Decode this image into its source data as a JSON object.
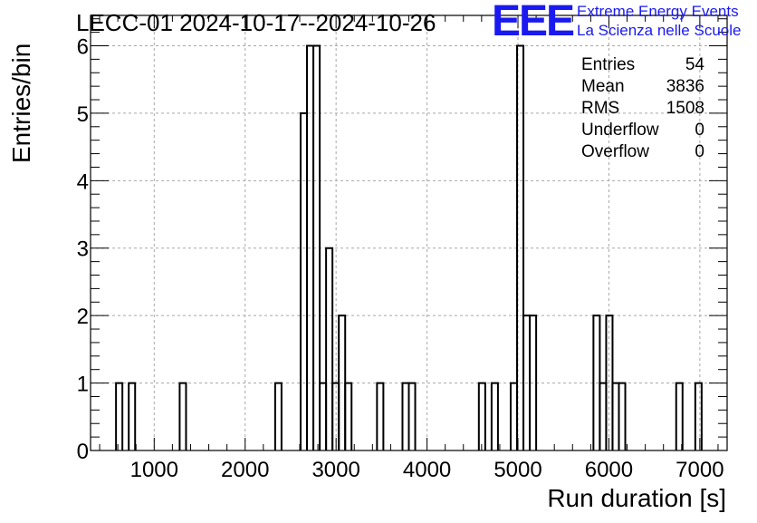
{
  "header": {
    "title": "LECC-01 2024-10-17--2024-10-26",
    "logo_mark": "EEE",
    "logo_line1": "Extreme Energy Events",
    "logo_line2": "La Scienza nelle Scuole"
  },
  "stats": {
    "entries_label": "Entries",
    "entries_value": "54",
    "mean_label": "Mean",
    "mean_value": "3836",
    "rms_label": "RMS",
    "rms_value": "1508",
    "underflow_label": "Underflow",
    "underflow_value": "0",
    "overflow_label": "Overflow",
    "overflow_value": "0"
  },
  "colors": {
    "logo": "#1a1af0",
    "line": "#000000",
    "grid": "#a8a8a8"
  },
  "chart_data": {
    "type": "bar",
    "title": "LECC-01 2024-10-17--2024-10-26",
    "xlabel": "Run duration [s]",
    "ylabel": "Entries/bin",
    "xlim": [
      300,
      7300
    ],
    "ylim": [
      0,
      6.45
    ],
    "grid": true,
    "x_ticks": [
      1000,
      2000,
      3000,
      4000,
      5000,
      6000,
      7000
    ],
    "x_tick_labels": [
      "1000",
      "2000",
      "3000",
      "4000",
      "5000",
      "6000",
      "7000"
    ],
    "y_ticks": [
      0,
      1,
      2,
      3,
      4,
      5,
      6
    ],
    "y_tick_labels": [
      "0",
      "1",
      "2",
      "3",
      "4",
      "5",
      "6"
    ],
    "bin_width": 70,
    "bins": [
      {
        "x0": 580,
        "count": 1
      },
      {
        "x0": 720,
        "count": 1
      },
      {
        "x0": 1280,
        "count": 1
      },
      {
        "x0": 2330,
        "count": 1
      },
      {
        "x0": 2610,
        "count": 5
      },
      {
        "x0": 2680,
        "count": 6
      },
      {
        "x0": 2750,
        "count": 6
      },
      {
        "x0": 2820,
        "count": 1
      },
      {
        "x0": 2890,
        "count": 3
      },
      {
        "x0": 2960,
        "count": 1
      },
      {
        "x0": 3030,
        "count": 2
      },
      {
        "x0": 3100,
        "count": 1
      },
      {
        "x0": 3450,
        "count": 1
      },
      {
        "x0": 3730,
        "count": 1
      },
      {
        "x0": 3800,
        "count": 1
      },
      {
        "x0": 4570,
        "count": 1
      },
      {
        "x0": 4710,
        "count": 1
      },
      {
        "x0": 4920,
        "count": 1
      },
      {
        "x0": 4990,
        "count": 6
      },
      {
        "x0": 5060,
        "count": 2
      },
      {
        "x0": 5130,
        "count": 2
      },
      {
        "x0": 5830,
        "count": 2
      },
      {
        "x0": 5900,
        "count": 1
      },
      {
        "x0": 5970,
        "count": 2
      },
      {
        "x0": 6040,
        "count": 1
      },
      {
        "x0": 6110,
        "count": 1
      },
      {
        "x0": 6740,
        "count": 1
      },
      {
        "x0": 6950,
        "count": 1
      }
    ]
  }
}
